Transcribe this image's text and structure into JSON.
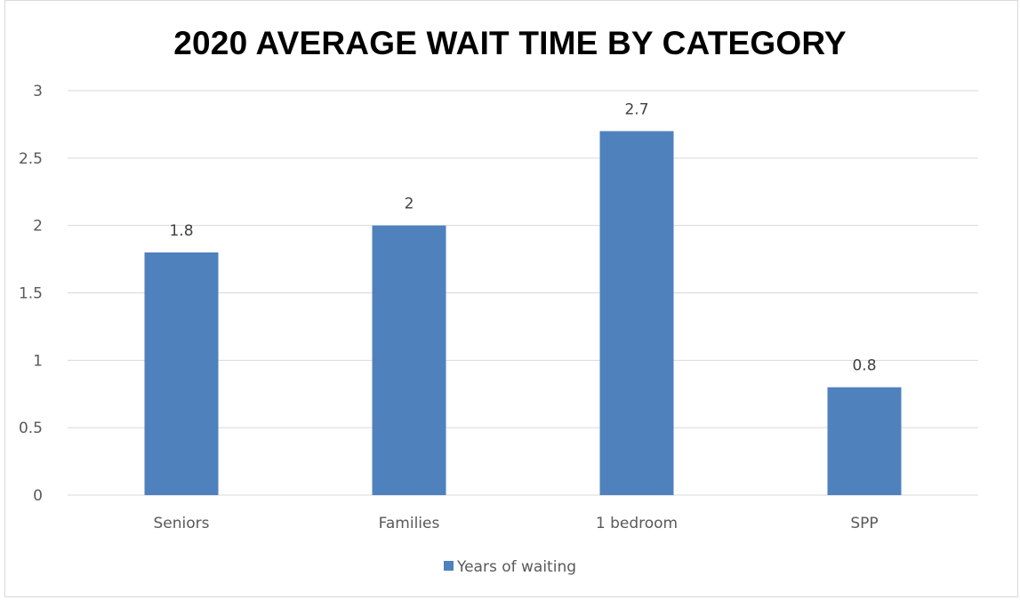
{
  "chart_data": {
    "type": "bar",
    "title": "2020 AVERAGE WAIT TIME BY CATEGORY",
    "categories": [
      "Seniors",
      "Families",
      "1 bedroom",
      "SPP"
    ],
    "series": [
      {
        "name": "Years of waiting",
        "values": [
          1.8,
          2,
          2.7,
          0.8
        ],
        "color": "#4f81bd"
      }
    ],
    "data_labels": [
      "1.8",
      "2",
      "2.7",
      "0.8"
    ],
    "ylim": [
      0,
      3
    ],
    "yticks": [
      0,
      0.5,
      1,
      1.5,
      2,
      2.5,
      3
    ],
    "ytick_labels": [
      "0",
      "0.5",
      "1",
      "1.5",
      "2",
      "2.5",
      "3"
    ],
    "grid": true,
    "legend_position": "bottom"
  }
}
